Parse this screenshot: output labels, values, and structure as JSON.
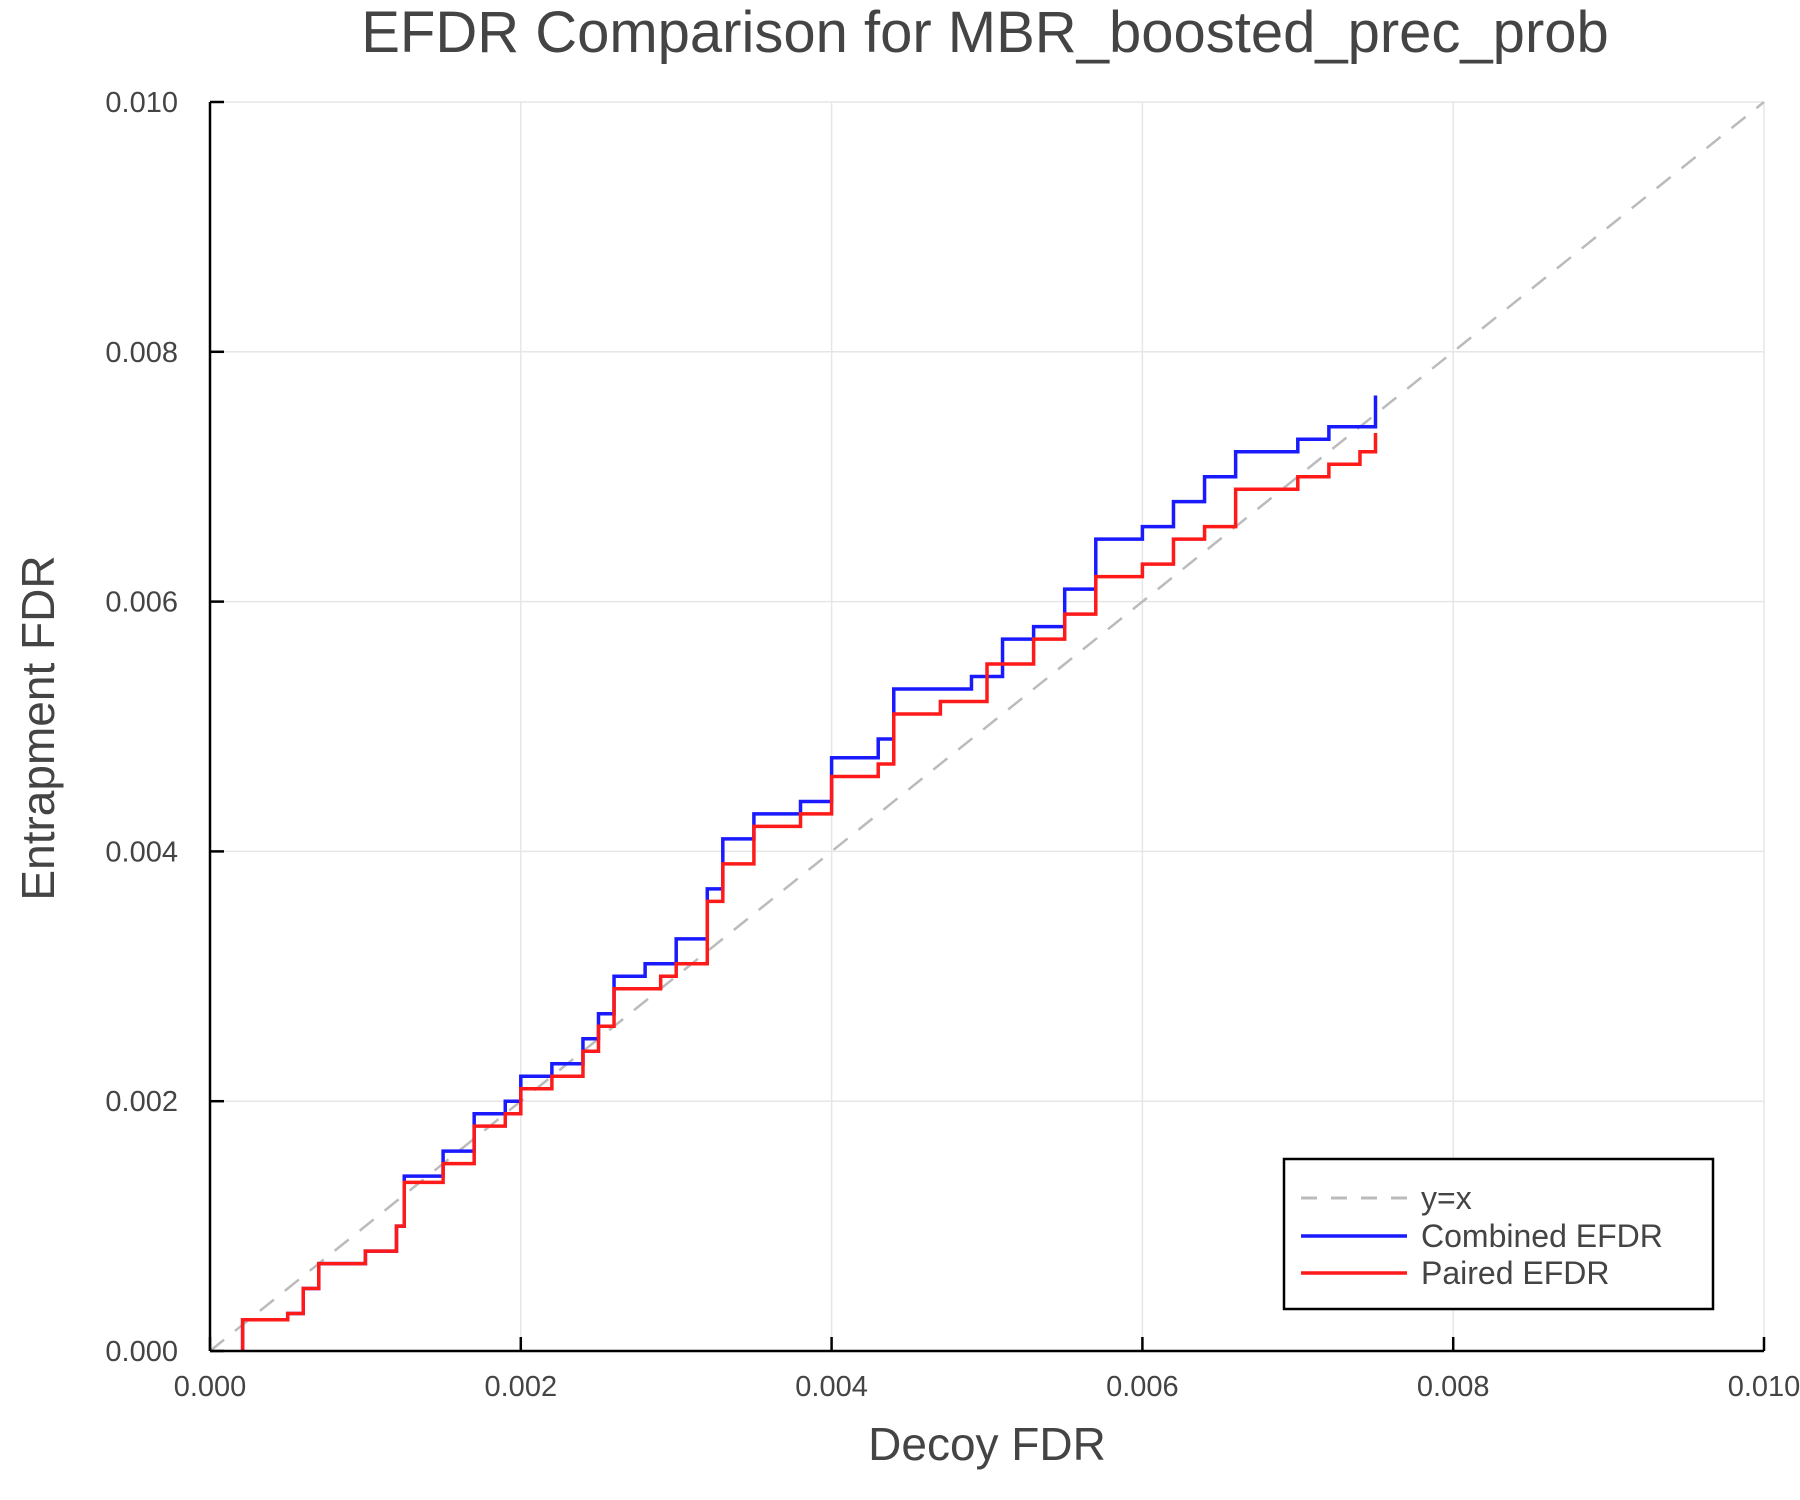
{
  "chart_data": {
    "type": "line",
    "title": "EFDR Comparison for MBR_boosted_prec_prob",
    "xlabel": "Decoy FDR",
    "ylabel": "Entrapment FDR",
    "xlim": [
      0,
      0.01
    ],
    "ylim": [
      0,
      0.01
    ],
    "xticks": [
      "0.000",
      "0.002",
      "0.004",
      "0.006",
      "0.008",
      "0.010"
    ],
    "yticks": [
      "0.000",
      "0.002",
      "0.004",
      "0.006",
      "0.008",
      "0.010"
    ],
    "grid": true,
    "legend_position": "bottom-right",
    "series": [
      {
        "name": "y=x",
        "color": "#bbbbbb",
        "style": "dashed",
        "x": [
          0,
          0.01
        ],
        "y": [
          0,
          0.01
        ]
      },
      {
        "name": "Combined EFDR",
        "color": "#1a1aff",
        "style": "step",
        "x": [
          0.00021,
          0.00021,
          0.0005,
          0.0006,
          0.0007,
          0.001,
          0.0012,
          0.00125,
          0.0015,
          0.0017,
          0.0019,
          0.002,
          0.0022,
          0.0024,
          0.0025,
          0.0026,
          0.0028,
          0.003,
          0.0032,
          0.0033,
          0.0035,
          0.0038,
          0.004,
          0.0043,
          0.0044,
          0.0049,
          0.0051,
          0.0053,
          0.0055,
          0.0057,
          0.006,
          0.0062,
          0.0064,
          0.0066,
          0.007,
          0.0072,
          0.0075
        ],
        "y": [
          0,
          0.00025,
          0.0003,
          0.0005,
          0.0007,
          0.0008,
          0.001,
          0.0014,
          0.0016,
          0.0019,
          0.002,
          0.0022,
          0.0023,
          0.0025,
          0.0027,
          0.003,
          0.0031,
          0.0033,
          0.0037,
          0.0041,
          0.0043,
          0.0044,
          0.00475,
          0.0049,
          0.0053,
          0.0054,
          0.0057,
          0.0058,
          0.0061,
          0.0065,
          0.0066,
          0.0068,
          0.007,
          0.0072,
          0.0073,
          0.0074,
          0.00765
        ]
      },
      {
        "name": "Paired EFDR",
        "color": "#ff1a1a",
        "style": "step",
        "x": [
          0.00021,
          0.00021,
          0.0005,
          0.0006,
          0.0007,
          0.001,
          0.0012,
          0.00125,
          0.0015,
          0.0017,
          0.0019,
          0.002,
          0.0022,
          0.0024,
          0.0025,
          0.0026,
          0.0029,
          0.003,
          0.0032,
          0.0033,
          0.0035,
          0.0038,
          0.004,
          0.0043,
          0.0044,
          0.0047,
          0.005,
          0.0053,
          0.0055,
          0.0057,
          0.006,
          0.0062,
          0.0064,
          0.0066,
          0.007,
          0.0072,
          0.0074,
          0.0075
        ],
        "y": [
          0,
          0.00025,
          0.0003,
          0.0005,
          0.0007,
          0.0008,
          0.001,
          0.00135,
          0.0015,
          0.0018,
          0.0019,
          0.0021,
          0.0022,
          0.0024,
          0.0026,
          0.0029,
          0.003,
          0.0031,
          0.0036,
          0.0039,
          0.0042,
          0.0043,
          0.0046,
          0.0047,
          0.0051,
          0.0052,
          0.0055,
          0.0057,
          0.0059,
          0.0062,
          0.0063,
          0.0065,
          0.0066,
          0.0069,
          0.007,
          0.0071,
          0.0072,
          0.00735
        ]
      }
    ]
  }
}
